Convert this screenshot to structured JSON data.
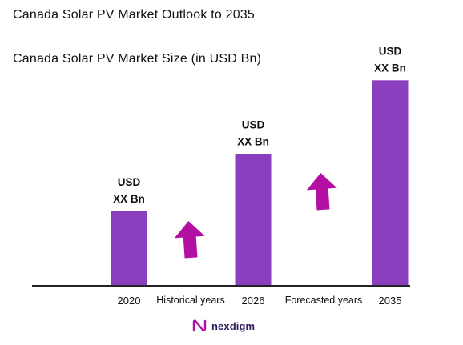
{
  "header": {
    "title": "Canada Solar PV Market Outlook to 2035",
    "subtitle": "Canada Solar PV Market Size (in USD Bn)"
  },
  "chart_data": {
    "type": "bar",
    "categories": [
      "2020",
      "2026",
      "2035"
    ],
    "values": [
      1.0,
      1.77,
      2.76
    ],
    "value_labels": [
      [
        "USD",
        "XX Bn"
      ],
      [
        "USD",
        "XX Bn"
      ],
      [
        "USD",
        "XX Bn"
      ]
    ],
    "period_labels": [
      "Historical years",
      "Forecasted years"
    ],
    "ylim": [
      0,
      3
    ],
    "grid": false,
    "bar_color": "#8a3fbf",
    "arrow_color": "#b30fa3",
    "axis_color": "#222222"
  },
  "brand": {
    "name": "nexdigm",
    "logo_icon": "nexdigm-logo-icon",
    "color": "#2e1a5c"
  }
}
